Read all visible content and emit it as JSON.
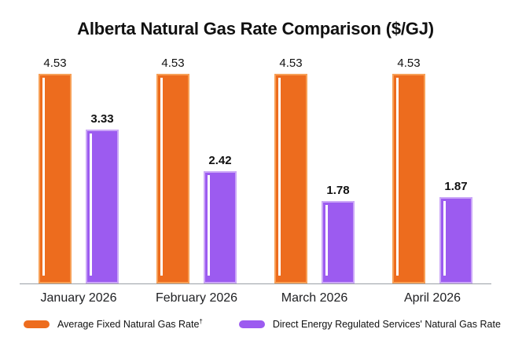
{
  "chart_data": {
    "type": "bar",
    "title": "Alberta Natural Gas Rate Comparison ($/GJ)",
    "categories": [
      "January 2026",
      "February 2026",
      "March 2026",
      "April 2026"
    ],
    "series": [
      {
        "name": "Average Fixed Natural Gas Rate",
        "footnote_mark": "†",
        "values": [
          4.53,
          4.53,
          4.53,
          4.53
        ],
        "color": "#ED6C1E",
        "border_color": "#F7A057",
        "value_label_weight": "regular"
      },
      {
        "name": "Direct Energy Regulated Services' Natural Gas Rate",
        "footnote_mark": "",
        "values": [
          3.33,
          2.42,
          1.78,
          1.87
        ],
        "color": "#9C5BF0",
        "border_color": "#CBA7F7",
        "value_label_weight": "bold"
      }
    ],
    "ylim": [
      0,
      4.53
    ],
    "grid": false,
    "legend_position": "bottom",
    "value_labels": true,
    "value_label_format": "0.00"
  },
  "colors": {
    "background": "#ffffff",
    "title": "#111111",
    "axis_line": "#9aa0a6",
    "category_label": "#202124",
    "value_label": "#111111"
  }
}
